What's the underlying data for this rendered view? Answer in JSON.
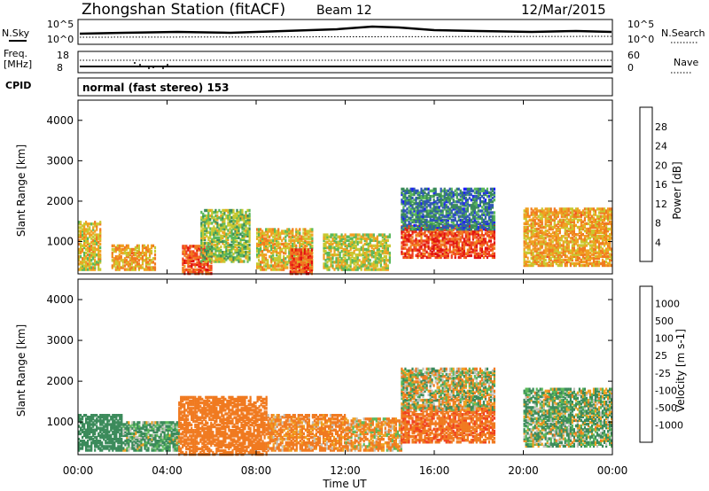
{
  "header": {
    "title": "Zhongshan Station (fitACF)",
    "beam": "Beam 12",
    "date": "12/Mar/2015"
  },
  "panels": {
    "sky_label": "N.Sky",
    "sky_ticks": [
      "10^5",
      "10^0"
    ],
    "search_label": "N.Search",
    "search_ticks": [
      "10^5",
      "10^0"
    ],
    "freq_label_1": "Freq.",
    "freq_label_2": "[MHz]",
    "freq_ticks": [
      "18",
      "8"
    ],
    "nave_label": "Nave",
    "nave_ticks": [
      "60",
      "0"
    ],
    "cpid_label": "CPID",
    "cpid_text": "normal (fast stereo) 153"
  },
  "chart_data": [
    {
      "type": "heatmap",
      "name": "power-panel",
      "ylabel": "Slant Range [km]",
      "y_ticks": [
        "1000",
        "2000",
        "3000",
        "4000"
      ],
      "colorbar_label": "Power [dB]",
      "colorbar_ticks": [
        "4",
        "8",
        "12",
        "16",
        "20",
        "24",
        "28"
      ],
      "colors": [
        "#1a1aff",
        "#2f55b8",
        "#3a8a5a",
        "#5ab85a",
        "#c8c830",
        "#f0a020",
        "#f07a20",
        "#f04020",
        "#e01010"
      ],
      "echo_regions": [
        {
          "t_start": "00:00",
          "t_end": "01:00",
          "range_km": [
            300,
            1500
          ],
          "power_db": 18
        },
        {
          "t_start": "01:30",
          "t_end": "03:30",
          "range_km": [
            300,
            900
          ],
          "power_db": 20
        },
        {
          "t_start": "04:40",
          "t_end": "06:00",
          "range_km": [
            200,
            900
          ],
          "power_db": 26
        },
        {
          "t_start": "05:30",
          "t_end": "07:40",
          "range_km": [
            500,
            1800
          ],
          "power_db": 14
        },
        {
          "t_start": "08:00",
          "t_end": "10:30",
          "range_km": [
            300,
            1300
          ],
          "power_db": 18
        },
        {
          "t_start": "09:30",
          "t_end": "10:30",
          "range_km": [
            200,
            800
          ],
          "power_db": 26
        },
        {
          "t_start": "11:00",
          "t_end": "14:00",
          "range_km": [
            300,
            1200
          ],
          "power_db": 16
        },
        {
          "t_start": "14:30",
          "t_end": "18:40",
          "range_km": [
            600,
            1400
          ],
          "power_db": 26
        },
        {
          "t_start": "14:30",
          "t_end": "18:40",
          "range_km": [
            1300,
            2300
          ],
          "power_db": 8
        },
        {
          "t_start": "20:00",
          "t_end": "24:00",
          "range_km": [
            400,
            1800
          ],
          "power_db": 20
        }
      ]
    },
    {
      "type": "heatmap",
      "name": "velocity-panel",
      "ylabel": "Slant Range [km]",
      "y_ticks": [
        "1000",
        "2000",
        "3000",
        "4000"
      ],
      "xlabel": "Time UT",
      "x_ticks": [
        "00:00",
        "04:00",
        "08:00",
        "12:00",
        "16:00",
        "20:00",
        "00:00"
      ],
      "colorbar_label": "Velocity [m s-1]",
      "colorbar_ticks": [
        "1000",
        "500",
        "100",
        "25",
        "-25",
        "-100",
        "-500",
        "-1000"
      ],
      "colors": [
        "#2040c0",
        "#2f6fa8",
        "#3a8a5a",
        "#5ab85a",
        "#c0c0b8",
        "#f0a020",
        "#f07a20",
        "#f04020",
        "#e01010"
      ],
      "echo_regions": [
        {
          "t_start": "00:00",
          "t_end": "02:00",
          "range_km": [
            300,
            1200
          ],
          "velocity_ms": 300
        },
        {
          "t_start": "02:00",
          "t_end": "04:30",
          "range_km": [
            300,
            1000
          ],
          "velocity_ms": 150
        },
        {
          "t_start": "04:30",
          "t_end": "08:30",
          "range_km": [
            200,
            1600
          ],
          "velocity_ms": -300
        },
        {
          "t_start": "08:30",
          "t_end": "12:00",
          "range_km": [
            300,
            1200
          ],
          "velocity_ms": -200
        },
        {
          "t_start": "12:00",
          "t_end": "14:30",
          "range_km": [
            300,
            1100
          ],
          "velocity_ms": -100
        },
        {
          "t_start": "14:30",
          "t_end": "18:40",
          "range_km": [
            500,
            1400
          ],
          "velocity_ms": -400
        },
        {
          "t_start": "14:30",
          "t_end": "18:40",
          "range_km": [
            1300,
            2300
          ],
          "velocity_ms": 0
        },
        {
          "t_start": "20:00",
          "t_end": "24:00",
          "range_km": [
            400,
            1800
          ],
          "velocity_ms": 80
        }
      ]
    }
  ]
}
